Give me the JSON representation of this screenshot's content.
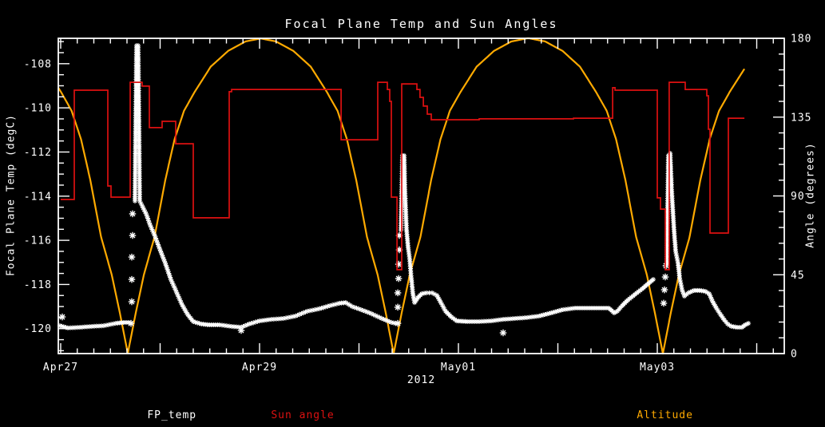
{
  "chart_data": {
    "type": "line",
    "title": "Focal Plane Temp and Sun Angles",
    "xlabel": "2012",
    "ylabel_left": "Focal Plane Temp (degC)",
    "ylabel_right": "Angle (degrees)",
    "xlim_days": [
      -0.024,
      7.277
    ],
    "ylim_left": [
      -121.13,
      -106.85
    ],
    "ylim_right": [
      0,
      180
    ],
    "grid": false,
    "x_tick_labels": [
      {
        "day": 0,
        "label": "Apr27"
      },
      {
        "day": 2,
        "label": "Apr29"
      },
      {
        "day": 4,
        "label": "May01"
      },
      {
        "day": 6,
        "label": "May03"
      }
    ],
    "x_major_step_days": 1,
    "x_minor_step_days": 0.166667,
    "yticks_left_major": [
      -108,
      -110,
      -112,
      -114,
      -116,
      -118,
      -120
    ],
    "yticks_left_minor_step": 0.5,
    "yticks_right_major": [
      0,
      45,
      90,
      135,
      180
    ],
    "yticks_right_minor_step": 9,
    "legend": [
      {
        "label": "FP_temp",
        "color": "#ffffff"
      },
      {
        "label": "Sun angle",
        "color": "#dd1111"
      },
      {
        "label": "Altitude",
        "color": "#ffaa00"
      }
    ],
    "series": {
      "fp_temp": {
        "name": "FP_temp",
        "marker": "asterisk",
        "color": "#ffffff",
        "units": [
          "days_since_Apr27",
          "degC"
        ],
        "segments": [
          [
            [
              -0.008,
              -119.87
            ],
            [
              0.072,
              -119.97
            ],
            [
              0.193,
              -119.94
            ],
            [
              0.313,
              -119.9
            ],
            [
              0.434,
              -119.87
            ],
            [
              0.554,
              -119.76
            ],
            [
              0.635,
              -119.72
            ],
            [
              0.683,
              -119.72
            ]
          ],
          [
            [
              0.747,
              -114.22
            ],
            [
              0.755,
              -110.54
            ],
            [
              0.763,
              -107.18
            ],
            [
              0.779,
              -107.18
            ],
            [
              0.787,
              -110.54
            ],
            [
              0.795,
              -114.22
            ],
            [
              0.819,
              -114.44
            ],
            [
              0.859,
              -114.8
            ],
            [
              0.9,
              -115.31
            ],
            [
              0.948,
              -115.81
            ],
            [
              0.996,
              -116.39
            ],
            [
              1.052,
              -117.04
            ],
            [
              1.108,
              -117.77
            ],
            [
              1.165,
              -118.35
            ],
            [
              1.221,
              -118.92
            ],
            [
              1.277,
              -119.36
            ],
            [
              1.333,
              -119.68
            ],
            [
              1.414,
              -119.79
            ],
            [
              1.494,
              -119.83
            ],
            [
              1.598,
              -119.83
            ],
            [
              1.719,
              -119.9
            ],
            [
              1.815,
              -119.94
            ],
            [
              1.896,
              -119.79
            ],
            [
              2.0,
              -119.65
            ],
            [
              2.12,
              -119.58
            ],
            [
              2.241,
              -119.54
            ],
            [
              2.361,
              -119.43
            ],
            [
              2.482,
              -119.21
            ],
            [
              2.602,
              -119.1
            ],
            [
              2.707,
              -118.96
            ],
            [
              2.803,
              -118.85
            ],
            [
              2.867,
              -118.82
            ],
            [
              2.932,
              -119.0
            ],
            [
              3.02,
              -119.14
            ],
            [
              3.124,
              -119.32
            ],
            [
              3.229,
              -119.54
            ],
            [
              3.325,
              -119.72
            ],
            [
              3.373,
              -119.76
            ]
          ],
          [
            [
              3.422,
              -115.53
            ],
            [
              3.43,
              -113.79
            ],
            [
              3.438,
              -112.16
            ],
            [
              3.454,
              -112.16
            ],
            [
              3.462,
              -113.79
            ],
            [
              3.478,
              -115.53
            ],
            [
              3.494,
              -116.32
            ],
            [
              3.51,
              -116.86
            ],
            [
              3.526,
              -117.7
            ],
            [
              3.542,
              -118.42
            ],
            [
              3.559,
              -118.82
            ],
            [
              3.591,
              -118.6
            ],
            [
              3.631,
              -118.42
            ],
            [
              3.679,
              -118.38
            ],
            [
              3.735,
              -118.38
            ],
            [
              3.783,
              -118.49
            ],
            [
              3.823,
              -118.82
            ],
            [
              3.871,
              -119.21
            ],
            [
              3.928,
              -119.47
            ],
            [
              3.984,
              -119.65
            ],
            [
              4.088,
              -119.68
            ],
            [
              4.209,
              -119.68
            ],
            [
              4.329,
              -119.65
            ],
            [
              4.45,
              -119.58
            ],
            [
              4.57,
              -119.54
            ],
            [
              4.691,
              -119.5
            ],
            [
              4.811,
              -119.43
            ],
            [
              4.932,
              -119.29
            ],
            [
              5.052,
              -119.14
            ],
            [
              5.173,
              -119.07
            ],
            [
              5.293,
              -119.07
            ],
            [
              5.414,
              -119.07
            ],
            [
              5.51,
              -119.07
            ],
            [
              5.542,
              -119.18
            ],
            [
              5.566,
              -119.29
            ],
            [
              5.598,
              -119.21
            ],
            [
              5.647,
              -118.96
            ],
            [
              5.703,
              -118.71
            ],
            [
              5.775,
              -118.45
            ],
            [
              5.847,
              -118.2
            ],
            [
              5.912,
              -117.95
            ],
            [
              5.96,
              -117.77
            ]
          ],
          [
            [
              6.096,
              -117.04
            ],
            [
              6.104,
              -114.51
            ],
            [
              6.112,
              -112.16
            ],
            [
              6.129,
              -112.06
            ],
            [
              6.145,
              -113.79
            ],
            [
              6.169,
              -115.6
            ],
            [
              6.185,
              -116.5
            ],
            [
              6.209,
              -117.04
            ],
            [
              6.225,
              -117.7
            ],
            [
              6.249,
              -118.24
            ],
            [
              6.273,
              -118.53
            ],
            [
              6.313,
              -118.38
            ],
            [
              6.369,
              -118.27
            ],
            [
              6.426,
              -118.27
            ],
            [
              6.482,
              -118.31
            ],
            [
              6.522,
              -118.42
            ],
            [
              6.554,
              -118.75
            ],
            [
              6.594,
              -119.07
            ],
            [
              6.635,
              -119.36
            ],
            [
              6.675,
              -119.61
            ],
            [
              6.707,
              -119.79
            ],
            [
              6.747,
              -119.9
            ],
            [
              6.803,
              -119.94
            ],
            [
              6.851,
              -119.94
            ],
            [
              6.884,
              -119.83
            ],
            [
              6.916,
              -119.76
            ]
          ]
        ],
        "sparse_points": [
          [
            0.016,
            -119.47
          ],
          [
            0.707,
            -119.76
          ],
          [
            0.715,
            -118.78
          ],
          [
            0.715,
            -117.77
          ],
          [
            0.715,
            -116.76
          ],
          [
            0.723,
            -115.78
          ],
          [
            0.723,
            -114.8
          ],
          [
            1.815,
            -120.08
          ],
          [
            3.39,
            -119.76
          ],
          [
            3.39,
            -119.03
          ],
          [
            3.39,
            -118.38
          ],
          [
            3.398,
            -117.73
          ],
          [
            3.398,
            -117.08
          ],
          [
            3.406,
            -116.43
          ],
          [
            3.406,
            -115.78
          ],
          [
            4.45,
            -120.19
          ],
          [
            6.064,
            -118.85
          ],
          [
            6.072,
            -118.24
          ],
          [
            6.08,
            -117.66
          ],
          [
            6.088,
            -117.15
          ]
        ]
      },
      "sun_angle": {
        "name": "Sun angle",
        "color": "#dd1111",
        "units": [
          "days_since_Apr27",
          "degrees"
        ],
        "points": [
          [
            0.0,
            88.0
          ],
          [
            0.137,
            88.0
          ],
          [
            0.137,
            150.4
          ],
          [
            0.474,
            150.4
          ],
          [
            0.474,
            95.7
          ],
          [
            0.506,
            95.7
          ],
          [
            0.506,
            89.3
          ],
          [
            0.699,
            89.3
          ],
          [
            0.699,
            154.9
          ],
          [
            0.819,
            154.9
          ],
          [
            0.819,
            152.7
          ],
          [
            0.892,
            152.7
          ],
          [
            0.892,
            129.0
          ],
          [
            1.02,
            129.0
          ],
          [
            1.02,
            132.6
          ],
          [
            1.157,
            132.6
          ],
          [
            1.157,
            119.8
          ],
          [
            1.333,
            119.8
          ],
          [
            1.333,
            77.5
          ],
          [
            1.695,
            77.5
          ],
          [
            1.695,
            149.5
          ],
          [
            1.719,
            149.5
          ],
          [
            1.719,
            150.8
          ],
          [
            2.82,
            150.8
          ],
          [
            2.82,
            122.1
          ],
          [
            3.189,
            122.1
          ],
          [
            3.189,
            154.9
          ],
          [
            3.285,
            154.9
          ],
          [
            3.285,
            150.8
          ],
          [
            3.309,
            150.8
          ],
          [
            3.309,
            144.0
          ],
          [
            3.325,
            144.0
          ],
          [
            3.325,
            89.3
          ],
          [
            3.382,
            89.3
          ],
          [
            3.382,
            47.9
          ],
          [
            3.43,
            47.9
          ],
          [
            3.43,
            154.0
          ],
          [
            3.582,
            154.0
          ],
          [
            3.582,
            150.8
          ],
          [
            3.614,
            150.8
          ],
          [
            3.614,
            146.3
          ],
          [
            3.647,
            146.3
          ],
          [
            3.647,
            141.3
          ],
          [
            3.687,
            141.3
          ],
          [
            3.687,
            136.7
          ],
          [
            3.727,
            136.7
          ],
          [
            3.727,
            133.5
          ],
          [
            4.209,
            133.5
          ],
          [
            4.209,
            134.0
          ],
          [
            5.157,
            134.0
          ],
          [
            5.157,
            134.4
          ],
          [
            5.551,
            134.4
          ],
          [
            5.551,
            151.8
          ],
          [
            5.575,
            151.8
          ],
          [
            5.575,
            150.4
          ],
          [
            6.0,
            150.4
          ],
          [
            6.0,
            88.9
          ],
          [
            6.032,
            88.9
          ],
          [
            6.032,
            82.5
          ],
          [
            6.08,
            82.5
          ],
          [
            6.08,
            47.9
          ],
          [
            6.12,
            47.9
          ],
          [
            6.12,
            154.9
          ],
          [
            6.281,
            154.9
          ],
          [
            6.281,
            150.8
          ],
          [
            6.498,
            150.8
          ],
          [
            6.498,
            147.2
          ],
          [
            6.514,
            147.2
          ],
          [
            6.514,
            128.1
          ],
          [
            6.53,
            128.1
          ],
          [
            6.53,
            68.8
          ],
          [
            6.715,
            68.8
          ],
          [
            6.715,
            134.4
          ],
          [
            6.876,
            134.4
          ]
        ]
      },
      "altitude": {
        "name": "Altitude",
        "color": "#ffaa00",
        "units": [
          "days_since_Apr27",
          "degrees_scale"
        ],
        "peak_value": 180,
        "perigee_days": [
          0.675,
          3.349,
          6.056
        ],
        "half_period_days": 1.345,
        "day_range": [
          -0.024,
          6.876
        ],
        "profile": [
          [
            0,
            0
          ],
          [
            0.06,
            0.13
          ],
          [
            0.12,
            0.25
          ],
          [
            0.2,
            0.37
          ],
          [
            0.28,
            0.55
          ],
          [
            0.35,
            0.68
          ],
          [
            0.42,
            0.77
          ],
          [
            0.5,
            0.83
          ],
          [
            0.62,
            0.91
          ],
          [
            0.75,
            0.96
          ],
          [
            0.88,
            0.99
          ],
          [
            1,
            1
          ]
        ]
      }
    }
  }
}
